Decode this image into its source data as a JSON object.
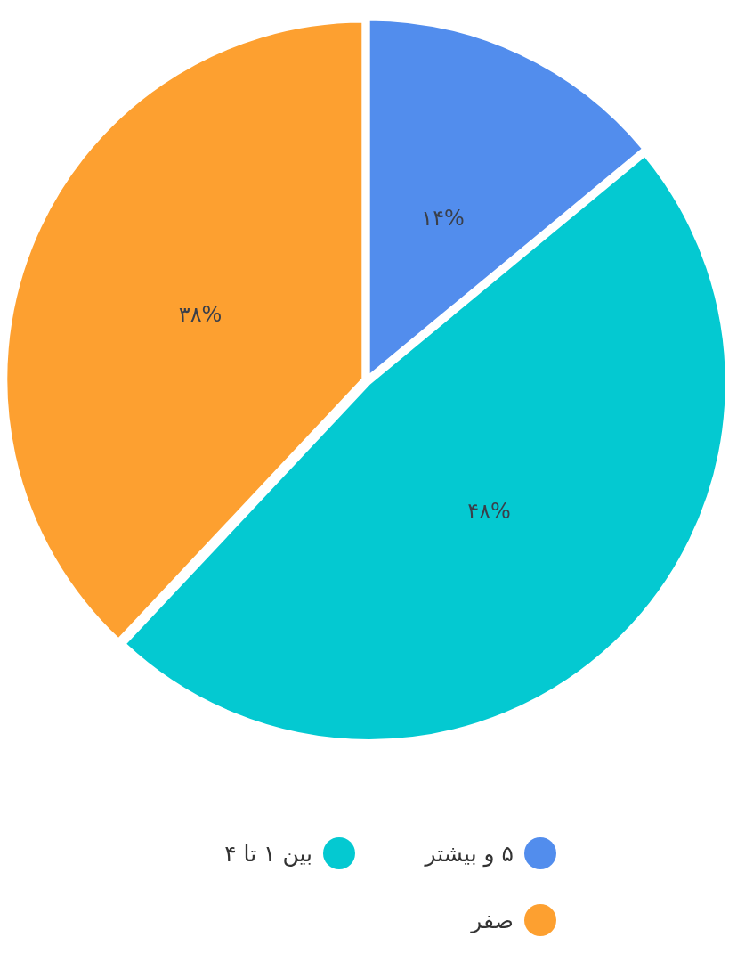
{
  "chart_data": {
    "type": "pie",
    "categories": [
      "۵ و بیشتر",
      "بین ۱ تا ۴",
      "صفر"
    ],
    "values": [
      14,
      48,
      38
    ],
    "colors": [
      "#528ded",
      "#04c9d1",
      "#fda030"
    ],
    "value_labels": [
      "۱۴%",
      "۴۸%",
      "۳۸%"
    ],
    "legend": "bottom"
  }
}
